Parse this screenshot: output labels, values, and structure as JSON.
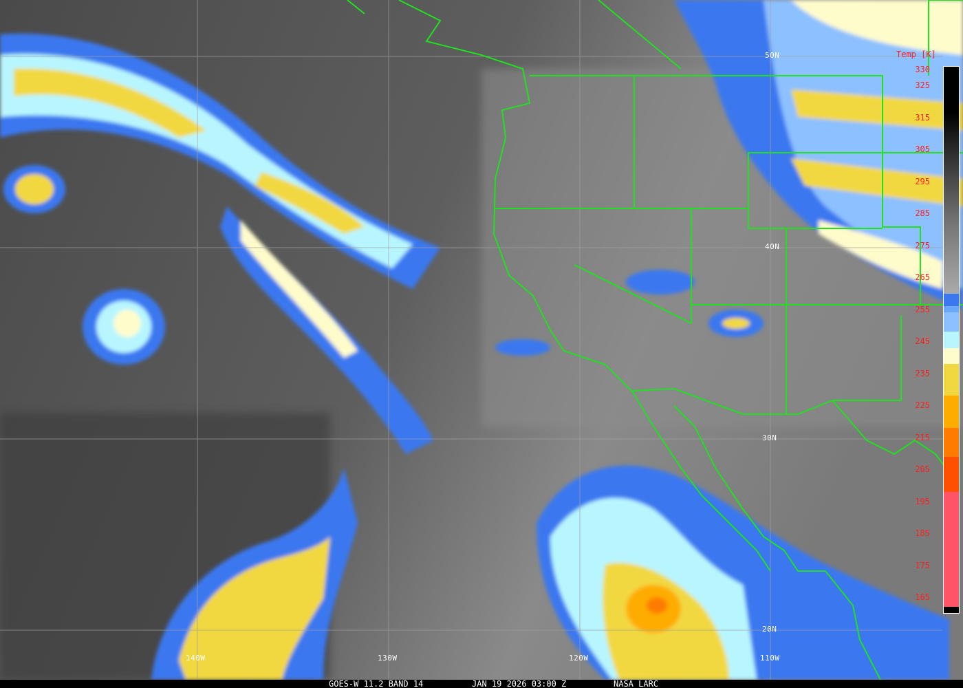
{
  "footer": {
    "satellite": "GOES-W 11.2 BAND 14",
    "datetime": "JAN 19 2026 03:00 Z",
    "source": "NASA LARC"
  },
  "grid": {
    "lat_labels": [
      "50N",
      "40N",
      "30N",
      "20N"
    ],
    "lon_labels": [
      "140W",
      "130W",
      "120W",
      "110W"
    ]
  },
  "colorbar": {
    "title": "Temp [K]",
    "ticks": [
      "330",
      "325",
      "315",
      "305",
      "295",
      "285",
      "275",
      "265",
      "255",
      "245",
      "235",
      "225",
      "215",
      "205",
      "195",
      "185",
      "175",
      "165"
    ],
    "range_k": [
      160,
      330
    ],
    "segments": [
      {
        "from": 330,
        "to": 260,
        "color": "gradient-black-to-lightgray"
      },
      {
        "from": 260,
        "to": 256,
        "color": "#3a78f0"
      },
      {
        "from": 256,
        "to": 254,
        "color": "#6aa8f8"
      },
      {
        "from": 254,
        "to": 248,
        "color": "#8cc0ff"
      },
      {
        "from": 248,
        "to": 243,
        "color": "#b8f6ff"
      },
      {
        "from": 243,
        "to": 238,
        "color": "#fffccc"
      },
      {
        "from": 238,
        "to": 228,
        "color": "#f2d840"
      },
      {
        "from": 228,
        "to": 218,
        "color": "#ffac00"
      },
      {
        "from": 218,
        "to": 209,
        "color": "#ff7c00"
      },
      {
        "from": 209,
        "to": 198,
        "color": "#ff5000"
      },
      {
        "from": 198,
        "to": 162,
        "color": "#ff5468"
      },
      {
        "from": 162,
        "to": 160,
        "color": "#000000"
      }
    ]
  },
  "colors": {
    "borders": "#20e020",
    "gridlines": "#a0a0a0",
    "ticklabels": "#ff2020"
  }
}
